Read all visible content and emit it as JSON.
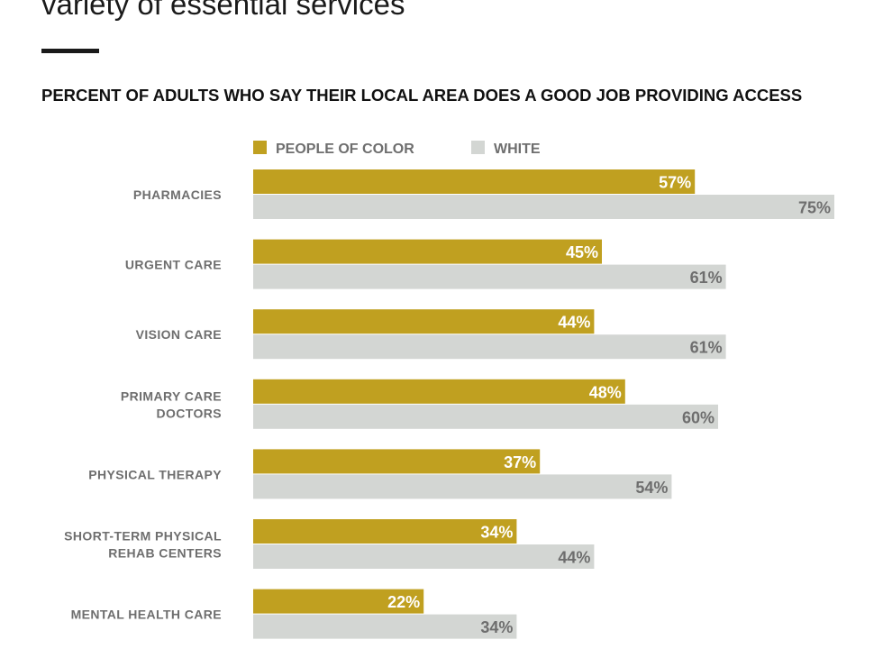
{
  "chart_data": {
    "type": "bar",
    "orientation": "horizontal",
    "title": "variety of essential services",
    "subtitle": "PERCENT OF ADULTS WHO SAY THEIR LOCAL AREA DOES A GOOD JOB PROVIDING ACCESS",
    "categories": [
      "PHARMACIES",
      "URGENT CARE",
      "VISION CARE",
      "PRIMARY CARE DOCTORS",
      "PHYSICAL THERAPY",
      "SHORT-TERM PHYSICAL REHAB CENTERS",
      "MENTAL HEALTH CARE"
    ],
    "category_lines": [
      [
        "PHARMACIES"
      ],
      [
        "URGENT CARE"
      ],
      [
        "VISION CARE"
      ],
      [
        "PRIMARY CARE",
        "DOCTORS"
      ],
      [
        "PHYSICAL THERAPY"
      ],
      [
        "SHORT-TERM PHYSICAL",
        "REHAB CENTERS"
      ],
      [
        "MENTAL HEALTH CARE"
      ]
    ],
    "series": [
      {
        "name": "PEOPLE OF COLOR",
        "color": "#c0a020",
        "label_color": "#ffffff",
        "values": [
          57,
          45,
          44,
          48,
          37,
          34,
          22
        ],
        "labels": [
          "57%",
          "45%",
          "44%",
          "48%",
          "37%",
          "34%",
          "22%"
        ]
      },
      {
        "name": "WHITE",
        "color": "#d3d6d3",
        "label_color": "#6e6e6e",
        "values": [
          75,
          61,
          61,
          60,
          54,
          44,
          34
        ],
        "labels": [
          "75%",
          "61%",
          "61%",
          "60%",
          "54%",
          "44%",
          "34%"
        ]
      }
    ],
    "xlim": [
      0,
      75
    ],
    "value_unit": "%",
    "grid": false,
    "legend_position": "top-left"
  }
}
